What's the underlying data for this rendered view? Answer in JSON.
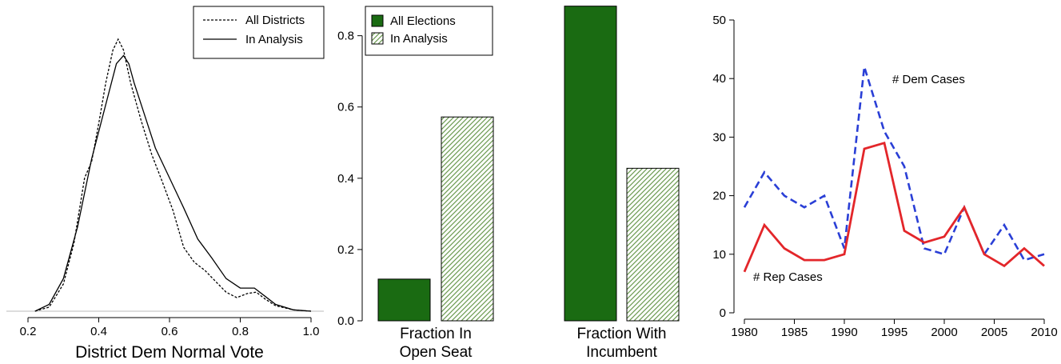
{
  "chart_data": [
    {
      "type": "line",
      "xlabel": "District Dem Normal Vote",
      "xticks": [
        "0.2",
        "0.4",
        "0.6",
        "0.8",
        "1.0"
      ],
      "xlim": [
        0.2,
        1.0
      ],
      "legend": {
        "placement": "top-right",
        "entries": [
          "All Districts",
          "In Analysis"
        ]
      },
      "series": [
        {
          "name": "All Districts",
          "style": "dashed",
          "x": [
            0.22,
            0.26,
            0.3,
            0.33,
            0.36,
            0.38,
            0.4,
            0.42,
            0.44,
            0.455,
            0.47,
            0.49,
            0.52,
            0.55,
            0.58,
            0.61,
            0.64,
            0.67,
            0.7,
            0.73,
            0.76,
            0.79,
            0.82,
            0.845,
            0.87,
            0.9,
            0.95,
            1.0
          ],
          "y": [
            0.0,
            0.03,
            0.2,
            0.5,
            0.98,
            1.1,
            1.38,
            1.68,
            1.92,
            2.0,
            1.92,
            1.68,
            1.4,
            1.15,
            0.95,
            0.74,
            0.47,
            0.36,
            0.3,
            0.22,
            0.14,
            0.1,
            0.13,
            0.14,
            0.09,
            0.04,
            0.01,
            0.0
          ]
        },
        {
          "name": "In Analysis",
          "style": "solid",
          "x": [
            0.22,
            0.26,
            0.3,
            0.34,
            0.38,
            0.42,
            0.45,
            0.47,
            0.485,
            0.5,
            0.53,
            0.56,
            0.6,
            0.64,
            0.68,
            0.72,
            0.76,
            0.8,
            0.84,
            0.87,
            0.9,
            0.95,
            1.0
          ],
          "y": [
            0.0,
            0.05,
            0.24,
            0.62,
            1.12,
            1.52,
            1.82,
            1.88,
            1.82,
            1.68,
            1.44,
            1.2,
            0.98,
            0.76,
            0.53,
            0.39,
            0.24,
            0.17,
            0.17,
            0.11,
            0.05,
            0.01,
            0.0
          ]
        }
      ]
    },
    {
      "type": "bar",
      "ylim": [
        0,
        0.88
      ],
      "yticks": [
        "0.0",
        "0.2",
        "0.4",
        "0.6",
        "0.8"
      ],
      "categories": [
        "Fraction In\nOpen Seat",
        "Fraction With\nIncumbent"
      ],
      "category_lines": [
        [
          "Fraction In",
          "Open Seat"
        ],
        [
          "Fraction With",
          "Incumbent"
        ]
      ],
      "legend": {
        "placement": "top-left",
        "entries": [
          "All Elections",
          "In Analysis"
        ]
      },
      "series": [
        {
          "name": "All Elections",
          "fill": "solid",
          "color": "#1a6b12",
          "values": [
            0.117,
            0.883
          ]
        },
        {
          "name": "In Analysis",
          "fill": "hatched",
          "color": "#6b9a50",
          "values": [
            0.572,
            0.428
          ]
        }
      ]
    },
    {
      "type": "line",
      "x": [
        1980,
        1982,
        1984,
        1986,
        1988,
        1990,
        1992,
        1994,
        1996,
        1998,
        2000,
        2002,
        2004,
        2006,
        2008,
        2010
      ],
      "xticks": [
        "1980",
        "1985",
        "1990",
        "1995",
        "2000",
        "2005",
        "2010"
      ],
      "yticks": [
        "0",
        "10",
        "20",
        "30",
        "40",
        "50"
      ],
      "xlim": [
        1980,
        2010
      ],
      "ylim": [
        0,
        50
      ],
      "series": [
        {
          "name": "# Dem Cases",
          "style": "dashed",
          "color": "#2a3fd6",
          "values": [
            18,
            24,
            20,
            18,
            20,
            11,
            42,
            31,
            25,
            11,
            10,
            18,
            10,
            15,
            9,
            10
          ]
        },
        {
          "name": "# Rep Cases",
          "style": "solid",
          "color": "#e3262a",
          "values": [
            7,
            15,
            11,
            9,
            9,
            10,
            28,
            29,
            14,
            12,
            13,
            18,
            10,
            8,
            11,
            8
          ]
        }
      ]
    }
  ]
}
